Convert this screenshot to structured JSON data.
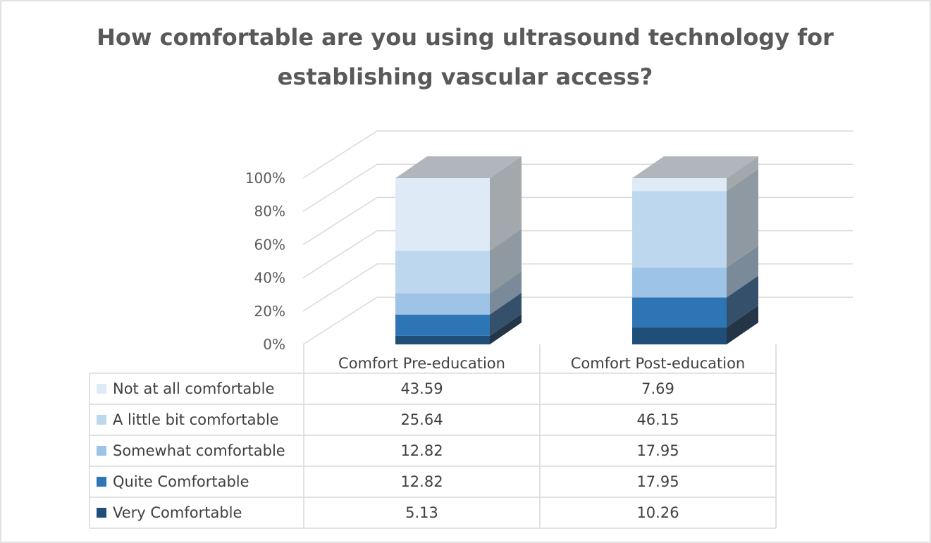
{
  "chart_data": {
    "type": "bar",
    "stacked": true,
    "percent_stacked": true,
    "three_d": true,
    "title": "How comfortable are you using ultrasound technology for establishing vascular access?",
    "categories": [
      "Comfort Pre-education",
      "Comfort Post-education"
    ],
    "series": [
      {
        "name": "Very Comfortable",
        "values": [
          5.13,
          10.26
        ],
        "color": "#1F4E79"
      },
      {
        "name": "Quite Comfortable",
        "values": [
          12.82,
          17.95
        ],
        "color": "#2E75B6"
      },
      {
        "name": "Somewhat comfortable",
        "values": [
          12.82,
          17.95
        ],
        "color": "#9DC3E6"
      },
      {
        "name": "A little bit comfortable",
        "values": [
          25.64,
          46.15
        ],
        "color": "#BDD7EE"
      },
      {
        "name": "Not at all comfortable",
        "values": [
          43.59,
          7.69
        ],
        "color": "#DEEBF7"
      }
    ],
    "table_order": [
      "Not at all comfortable",
      "A little bit comfortable",
      "Somewhat comfortable",
      "Quite Comfortable",
      "Very Comfortable"
    ],
    "y_ticks": [
      "0%",
      "20%",
      "40%",
      "60%",
      "80%",
      "100%"
    ],
    "ylim": [
      0,
      100
    ],
    "grid": true,
    "legend": "data-table"
  }
}
